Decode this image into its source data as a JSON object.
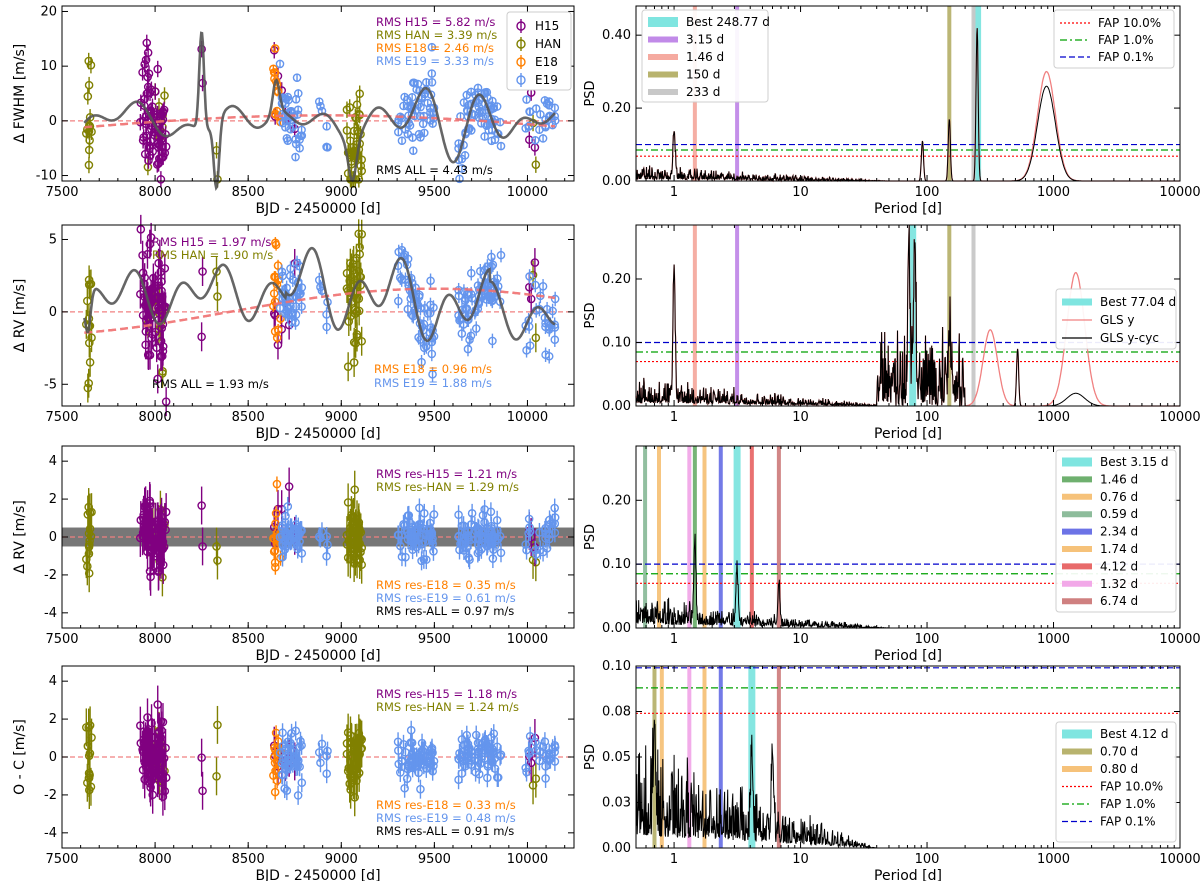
{
  "figure": {
    "description_hidden": false
  },
  "chart_data": [
    {
      "id": "ts1",
      "type": "scatter",
      "xlabel": "BJD - 2450000 [d]",
      "ylabel": "Δ FWHM [m/s]",
      "xlim": [
        7500,
        10250
      ],
      "ylim": [
        -11,
        21
      ],
      "xticks": [
        7500,
        8000,
        8500,
        9000,
        9500,
        10000
      ],
      "yticks": [
        -10,
        0,
        10,
        20
      ],
      "legend": [
        "H15",
        "HAN",
        "E18",
        "E19"
      ],
      "legend_position": "top-right",
      "rms_texts": [
        {
          "text": "RMS H15    = 5.82 m/s",
          "color": "#800080"
        },
        {
          "text": "RMS HAN   = 3.39 m/s",
          "color": "#808000"
        },
        {
          "text": "RMS E18    = 2.46 m/s",
          "color": "#ff8000"
        },
        {
          "text": "RMS E19    = 3.33 m/s",
          "color": "#6495ed"
        }
      ],
      "rms_all": "RMS ALL    = 4.43 m/s",
      "model": true,
      "trend": "curve"
    },
    {
      "id": "ts2",
      "type": "scatter",
      "xlabel": "BJD - 2450000 [d]",
      "ylabel": "Δ RV [m/s]",
      "xlim": [
        7500,
        10250
      ],
      "ylim": [
        -6.5,
        6
      ],
      "xticks": [
        7500,
        8000,
        8500,
        9000,
        9500,
        10000
      ],
      "yticks": [
        -5,
        0,
        5
      ],
      "rms_texts": [
        {
          "text": "RMS H15    = 1.97 m/s",
          "color": "#800080"
        },
        {
          "text": "RMS HAN   = 1.90 m/s",
          "color": "#808000"
        },
        {
          "text": "RMS E18    = 0.96 m/s",
          "color": "#ff8000"
        },
        {
          "text": "RMS E19    = 1.88 m/s",
          "color": "#6495ed"
        }
      ],
      "rms_all": "RMS ALL    = 1.93 m/s",
      "model": true,
      "trend": "curve"
    },
    {
      "id": "ts3",
      "type": "scatter",
      "xlabel": "BJD - 2450000 [d]",
      "ylabel": "Δ RV [m/s]",
      "xlim": [
        7500,
        10250
      ],
      "ylim": [
        -4.8,
        4.8
      ],
      "xticks": [
        7500,
        8000,
        8500,
        9000,
        9500,
        10000
      ],
      "yticks": [
        -4,
        -2,
        0,
        2,
        4
      ],
      "band": [
        -0.5,
        0.5
      ],
      "rms_texts": [
        {
          "text": "RMS res-H15   = 1.21 m/s",
          "color": "#800080"
        },
        {
          "text": "RMS res-HAN  = 1.29 m/s",
          "color": "#808000"
        },
        {
          "text": "RMS res-E18   = 0.35 m/s",
          "color": "#ff8000"
        },
        {
          "text": "RMS res-E19   = 0.61 m/s",
          "color": "#6495ed"
        },
        {
          "text": "RMS res-ALL    = 0.97 m/s",
          "color": "#000000"
        }
      ],
      "model": false,
      "trend": "flat"
    },
    {
      "id": "ts4",
      "type": "scatter",
      "xlabel": "BJD - 2450000 [d]",
      "ylabel": "O - C [m/s]",
      "xlim": [
        7500,
        10250
      ],
      "ylim": [
        -4.8,
        4.8
      ],
      "xticks": [
        7500,
        8000,
        8500,
        9000,
        9500,
        10000
      ],
      "yticks": [
        -4,
        -2,
        0,
        2,
        4
      ],
      "rms_texts": [
        {
          "text": "RMS res-H15   = 1.18 m/s",
          "color": "#800080"
        },
        {
          "text": "RMS res-HAN  = 1.24 m/s",
          "color": "#808000"
        },
        {
          "text": "RMS res-E18   = 0.33 m/s",
          "color": "#ff8000"
        },
        {
          "text": "RMS res-E19   = 0.48 m/s",
          "color": "#6495ed"
        },
        {
          "text": "RMS res-ALL    = 0.91 m/s",
          "color": "#000000"
        }
      ],
      "model": false,
      "trend": "flat"
    },
    {
      "id": "p1",
      "type": "line",
      "xscale": "log",
      "xlabel": "Period [d]",
      "ylabel": "PSD",
      "xlim": [
        0.5,
        10000
      ],
      "ylim": [
        0,
        0.48
      ],
      "yticks": [
        0.0,
        0.2,
        0.4
      ],
      "ytick_labels": [
        "0.00",
        "0.20",
        "0.40"
      ],
      "fap": [
        0.068,
        0.085,
        0.1
      ],
      "peaks": [
        {
          "period": 248.77,
          "color": "#7fe5e0",
          "width": 8,
          "label": "Best 248.77 d"
        },
        {
          "period": 3.15,
          "color": "#c18ae8",
          "width": 4,
          "label": "3.15 d"
        },
        {
          "period": 1.46,
          "color": "#f5aaa0",
          "width": 4,
          "label": "1.46 d"
        },
        {
          "period": 150,
          "color": "#b8b36e",
          "width": 4,
          "label": "150 d"
        },
        {
          "period": 233,
          "color": "#c8c8c8",
          "width": 4,
          "label": "233 d"
        }
      ],
      "fap_legend": [
        "FAP 10.0%",
        "FAP  1.0%",
        "FAP  0.1%"
      ],
      "gls_legend": [],
      "peak_heights": [
        [
          1.0,
          0.13
        ],
        [
          92,
          0.11
        ],
        [
          150,
          0.17
        ],
        [
          248.77,
          0.42
        ]
      ],
      "hump": {
        "center": 880,
        "black": 0.26,
        "red": 0.3
      }
    },
    {
      "id": "p2",
      "type": "line",
      "xscale": "log",
      "xlabel": "Period [d]",
      "ylabel": "PSD",
      "xlim": [
        0.5,
        10000
      ],
      "ylim": [
        0,
        0.285
      ],
      "yticks": [
        0.0,
        0.1,
        0.2
      ],
      "ytick_labels": [
        "0.00",
        "0.10",
        "0.20"
      ],
      "fap": [
        0.07,
        0.085,
        0.1
      ],
      "peaks": [
        {
          "period": 77.04,
          "color": "#7fe5e0",
          "width": 7,
          "label": "Best 77.04 d"
        },
        {
          "period": 3.15,
          "color": "#c18ae8",
          "width": 4,
          "label": ""
        },
        {
          "period": 1.46,
          "color": "#f5aaa0",
          "width": 4,
          "label": ""
        },
        {
          "period": 150,
          "color": "#b8b36e",
          "width": 4,
          "label": ""
        },
        {
          "period": 233,
          "color": "#c8c8c8",
          "width": 4,
          "label": ""
        }
      ],
      "fap_legend": [],
      "gls_legend": [
        "Best 77.04 d",
        "GLS y",
        "GLS y-cyc"
      ],
      "peak_heights": [
        [
          1.0,
          0.21
        ],
        [
          72,
          0.22
        ],
        [
          80,
          0.24
        ],
        [
          150,
          0.09
        ],
        [
          520,
          0.09
        ]
      ],
      "hump": {
        "center": 1500,
        "black": 0.02,
        "red": 0.21
      }
    },
    {
      "id": "p3",
      "type": "line",
      "xscale": "log",
      "xlabel": "Period [d]",
      "ylabel": "PSD",
      "xlim": [
        0.5,
        10000
      ],
      "ylim": [
        0,
        0.285
      ],
      "yticks": [
        0.0,
        0.1,
        0.2
      ],
      "ytick_labels": [
        "0.00",
        "0.10",
        "0.20"
      ],
      "fap": [
        0.07,
        0.085,
        0.1
      ],
      "peaks": [
        {
          "period": 3.15,
          "color": "#7fe5e0",
          "width": 7,
          "label": "Best 3.15 d"
        },
        {
          "period": 1.46,
          "color": "#6fb06f",
          "width": 4,
          "label": "1.46 d"
        },
        {
          "period": 0.76,
          "color": "#f6c27a",
          "width": 4,
          "label": "0.76 d"
        },
        {
          "period": 0.59,
          "color": "#8dbc9b",
          "width": 4,
          "label": "0.59 d"
        },
        {
          "period": 2.34,
          "color": "#6c73e6",
          "width": 4,
          "label": "2.34 d"
        },
        {
          "period": 1.74,
          "color": "#f6c27a",
          "width": 4,
          "label": "1.74 d"
        },
        {
          "period": 4.12,
          "color": "#e86a6a",
          "width": 4,
          "label": "4.12 d"
        },
        {
          "period": 1.32,
          "color": "#f2a8e8",
          "width": 4,
          "label": "1.32 d"
        },
        {
          "period": 6.74,
          "color": "#cf8080",
          "width": 4,
          "label": "6.74 d"
        }
      ],
      "fap_legend": [],
      "gls_legend": [],
      "peak_heights": [
        [
          1.46,
          0.12
        ],
        [
          3.15,
          0.08
        ],
        [
          6.74,
          0.06
        ]
      ],
      "hump": null
    },
    {
      "id": "p4",
      "type": "line",
      "xscale": "log",
      "xlabel": "Period [d]",
      "ylabel": "PSD",
      "xlim": [
        0.5,
        10000
      ],
      "ylim": [
        0,
        0.1
      ],
      "yticks": [
        0.0,
        0.025,
        0.05,
        0.075,
        0.1
      ],
      "ytick_labels": [
        "0.00",
        "0.03",
        "0.05",
        "0.08",
        "0.10"
      ],
      "fap": [
        0.074,
        0.088,
        0.099
      ],
      "peaks": [
        {
          "period": 4.12,
          "color": "#7fe5e0",
          "width": 7,
          "label": "Best 4.12 d"
        },
        {
          "period": 0.7,
          "color": "#b8b36e",
          "width": 4,
          "label": "0.70 d"
        },
        {
          "period": 0.8,
          "color": "#f6c27a",
          "width": 4,
          "label": "0.80 d"
        },
        {
          "period": 1.32,
          "color": "#f2a8e8",
          "width": 4,
          "label": ""
        },
        {
          "period": 1.74,
          "color": "#f6c27a",
          "width": 4,
          "label": ""
        },
        {
          "period": 2.34,
          "color": "#6c73e6",
          "width": 4,
          "label": ""
        },
        {
          "period": 6.74,
          "color": "#cf8080",
          "width": 4,
          "label": ""
        }
      ],
      "fap_legend": [
        "FAP 10.0%",
        "FAP  1.0%",
        "FAP  0.1%"
      ],
      "gls_legend": [],
      "peak_heights": [
        [
          0.7,
          0.06
        ],
        [
          4.12,
          0.045
        ],
        [
          6.0,
          0.045
        ]
      ],
      "hump": null
    }
  ]
}
